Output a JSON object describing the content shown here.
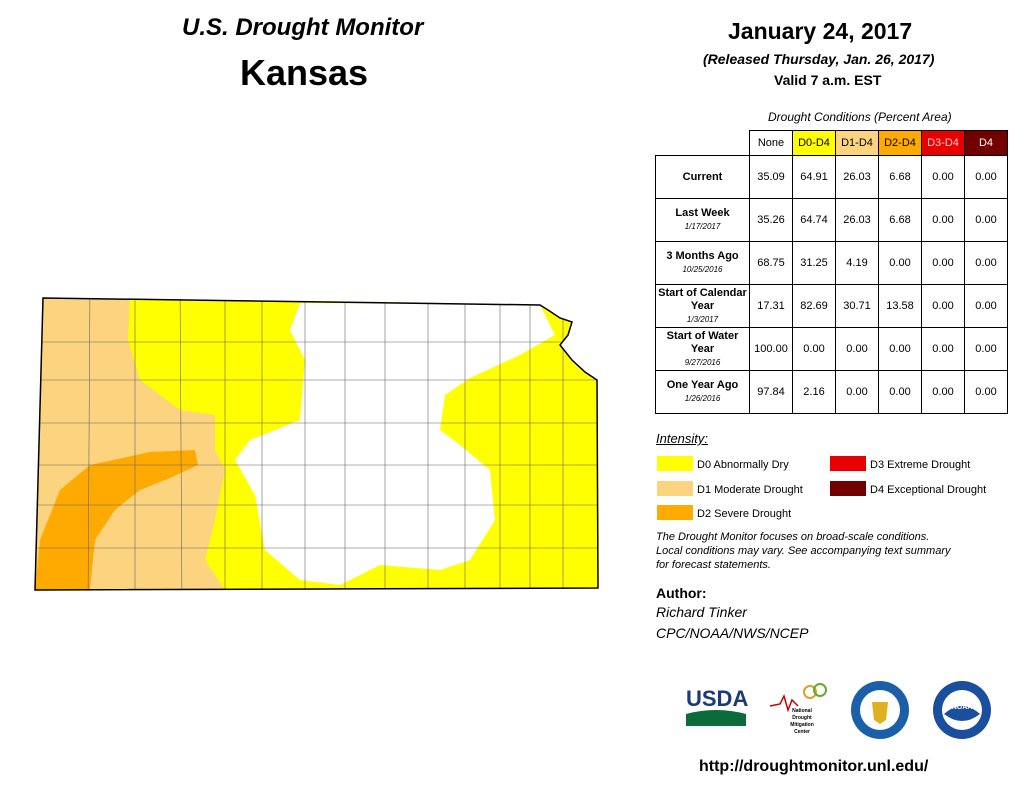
{
  "header": {
    "title": "U.S. Drought Monitor",
    "state": "Kansas",
    "date": "January 24, 2017",
    "released": "(Released Thursday, Jan. 26, 2017)",
    "valid": "Valid 7 a.m. EST"
  },
  "table": {
    "caption": "Drought Conditions (Percent Area)",
    "columns": [
      "None",
      "D0-D4",
      "D1-D4",
      "D2-D4",
      "D3-D4",
      "D4"
    ],
    "rows": [
      {
        "label": "Current",
        "values": [
          "35.09",
          "64.91",
          "26.03",
          "6.68",
          "0.00",
          "0.00"
        ]
      },
      {
        "label": "Last Week",
        "date": "1/17/2017",
        "values": [
          "35.26",
          "64.74",
          "26.03",
          "6.68",
          "0.00",
          "0.00"
        ]
      },
      {
        "label": "3 Months Ago",
        "date": "10/25/2016",
        "values": [
          "68.75",
          "31.25",
          "4.19",
          "0.00",
          "0.00",
          "0.00"
        ]
      },
      {
        "label": "Start of Calendar Year",
        "date": "1/3/2017",
        "values": [
          "17.31",
          "82.69",
          "30.71",
          "13.58",
          "0.00",
          "0.00"
        ]
      },
      {
        "label": "Start of Water Year",
        "date": "9/27/2016",
        "values": [
          "100.00",
          "0.00",
          "0.00",
          "0.00",
          "0.00",
          "0.00"
        ]
      },
      {
        "label": "One Year Ago",
        "date": "1/26/2016",
        "values": [
          "97.84",
          "2.16",
          "0.00",
          "0.00",
          "0.00",
          "0.00"
        ]
      }
    ]
  },
  "legend": {
    "title": "Intensity:",
    "items": [
      "D0 Abnormally Dry",
      "D1 Moderate Drought",
      "D2 Severe Drought",
      "D3 Extreme Drought",
      "D4 Exceptional Drought"
    ]
  },
  "note": [
    "The Drought Monitor focuses on broad-scale conditions.",
    "Local conditions may vary. See accompanying text summary",
    "for forecast statements."
  ],
  "author": {
    "heading": "Author:",
    "name": "Richard Tinker",
    "org": "CPC/NOAA/NWS/NCEP"
  },
  "logos": {
    "usda": "USDA",
    "ndmc": [
      "National",
      "Drought",
      "Mitigation",
      "Center"
    ],
    "noaa": "NOAA"
  },
  "url": "http://droughtmonitor.unl.edu/"
}
